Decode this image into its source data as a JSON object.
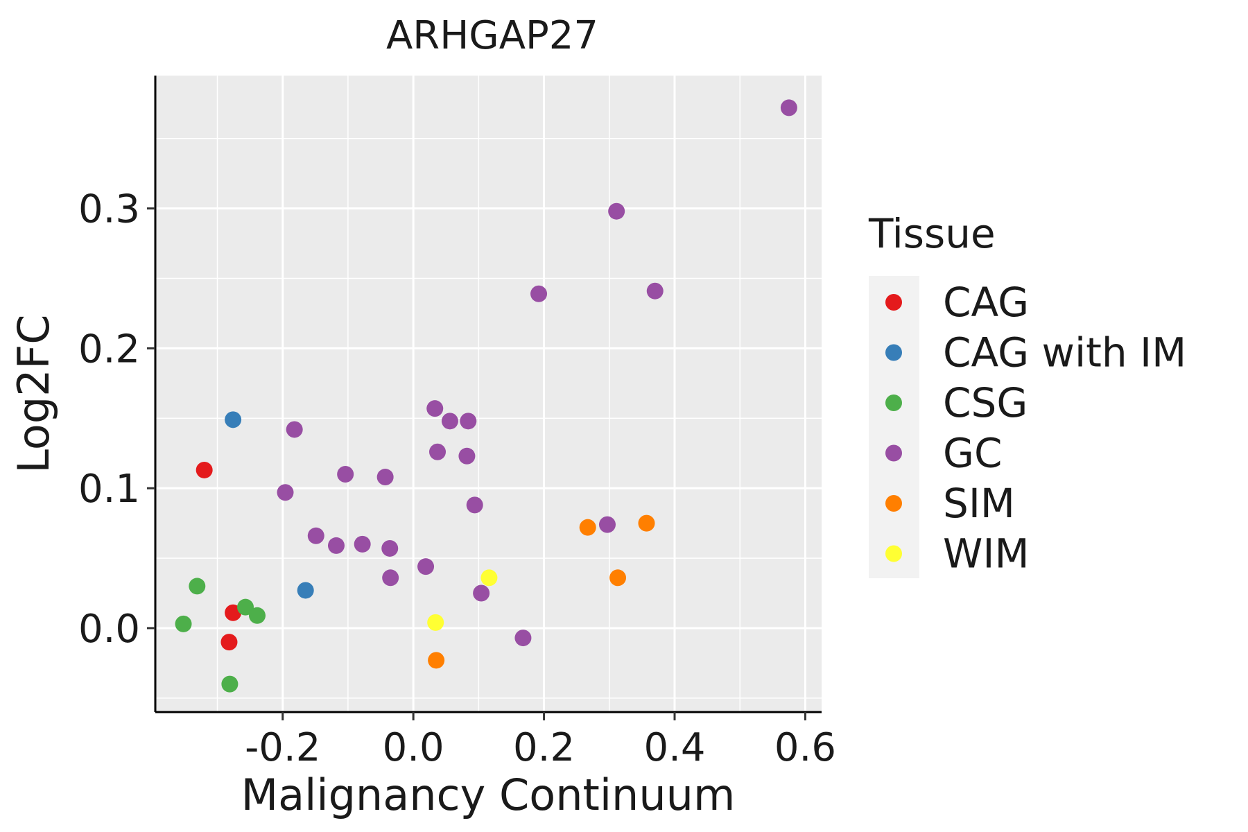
{
  "chart_data": {
    "type": "scatter",
    "title": "ARHGAP27",
    "xlabel": "Malignancy Continuum",
    "ylabel": "Log2FC",
    "xlim": [
      -0.395,
      0.625
    ],
    "ylim": [
      -0.06,
      0.395
    ],
    "x_ticks": [
      -0.2,
      0.0,
      0.2,
      0.4,
      0.6
    ],
    "x_tick_labels": [
      "-0.2",
      "0.0",
      "0.2",
      "0.4",
      "0.6"
    ],
    "y_ticks": [
      0.0,
      0.1,
      0.2,
      0.3
    ],
    "y_tick_labels": [
      "0.0",
      "0.1",
      "0.2",
      "0.3"
    ],
    "grid": true,
    "legend": {
      "title": "Tissue",
      "placement": "right"
    },
    "series": [
      {
        "name": "CAG",
        "color": "#e41a1c",
        "points": [
          {
            "x": -0.32,
            "y": 0.113
          },
          {
            "x": -0.276,
            "y": 0.011
          },
          {
            "x": -0.282,
            "y": -0.01
          }
        ]
      },
      {
        "name": "CAG with IM",
        "color": "#377eb8",
        "points": [
          {
            "x": -0.276,
            "y": 0.149
          },
          {
            "x": -0.165,
            "y": 0.027
          }
        ]
      },
      {
        "name": "CSG",
        "color": "#4daf4a",
        "points": [
          {
            "x": -0.331,
            "y": 0.03
          },
          {
            "x": -0.352,
            "y": 0.003
          },
          {
            "x": -0.257,
            "y": 0.015
          },
          {
            "x": -0.239,
            "y": 0.009
          },
          {
            "x": -0.281,
            "y": -0.04
          }
        ]
      },
      {
        "name": "GC",
        "color": "#984ea3",
        "points": [
          {
            "x": 0.575,
            "y": 0.372
          },
          {
            "x": 0.311,
            "y": 0.298
          },
          {
            "x": 0.192,
            "y": 0.239
          },
          {
            "x": 0.37,
            "y": 0.241
          },
          {
            "x": 0.033,
            "y": 0.157
          },
          {
            "x": 0.056,
            "y": 0.148
          },
          {
            "x": 0.084,
            "y": 0.148
          },
          {
            "x": 0.037,
            "y": 0.126
          },
          {
            "x": 0.082,
            "y": 0.123
          },
          {
            "x": -0.182,
            "y": 0.142
          },
          {
            "x": -0.104,
            "y": 0.11
          },
          {
            "x": -0.043,
            "y": 0.108
          },
          {
            "x": -0.196,
            "y": 0.097
          },
          {
            "x": 0.094,
            "y": 0.088
          },
          {
            "x": -0.149,
            "y": 0.066
          },
          {
            "x": -0.118,
            "y": 0.059
          },
          {
            "x": -0.078,
            "y": 0.06
          },
          {
            "x": -0.036,
            "y": 0.057
          },
          {
            "x": 0.019,
            "y": 0.044
          },
          {
            "x": -0.035,
            "y": 0.036
          },
          {
            "x": 0.104,
            "y": 0.025
          },
          {
            "x": 0.297,
            "y": 0.074
          },
          {
            "x": 0.168,
            "y": -0.007
          }
        ]
      },
      {
        "name": "SIM",
        "color": "#ff7f00",
        "points": [
          {
            "x": 0.267,
            "y": 0.072
          },
          {
            "x": 0.357,
            "y": 0.075
          },
          {
            "x": 0.313,
            "y": 0.036
          },
          {
            "x": 0.035,
            "y": -0.023
          }
        ]
      },
      {
        "name": "WIM",
        "color": "#ffff33",
        "points": [
          {
            "x": 0.116,
            "y": 0.036
          },
          {
            "x": 0.034,
            "y": 0.004
          }
        ]
      }
    ]
  }
}
